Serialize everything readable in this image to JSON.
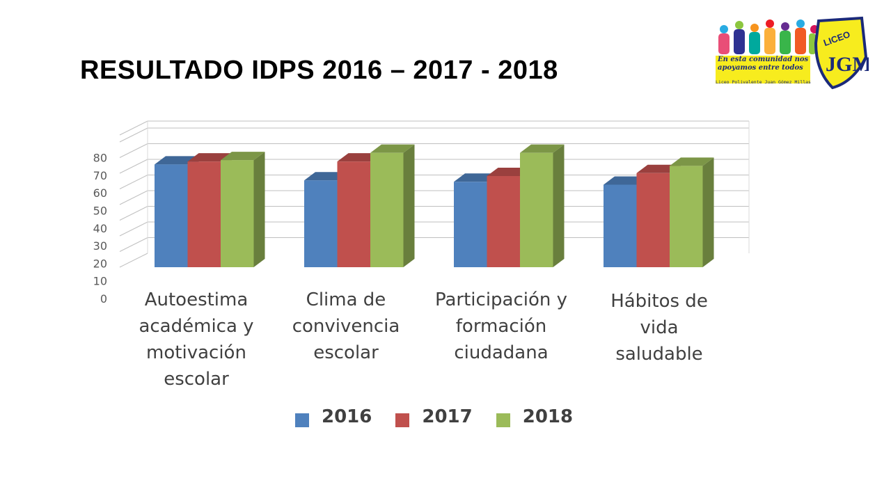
{
  "slide": {
    "title": "RESULTADO IDPS 2016 – 2017 - 2018"
  },
  "logo": {
    "badge_text": "LICEO",
    "monogram": "JGM",
    "slogan_line1": "En esta comunidad nos",
    "slogan_line2": "apoyamos entre todos",
    "school_name": "Liceo Polivalente Juan Gómez Millas"
  },
  "chart_data": {
    "type": "bar",
    "title": "",
    "xlabel": "",
    "ylabel": "",
    "ylim": [
      0,
      80
    ],
    "yticks": [
      0,
      10,
      20,
      30,
      40,
      50,
      60,
      70,
      80
    ],
    "grid": true,
    "legend_position": "bottom",
    "categories": [
      "Autoestima académica y motivación escolar",
      "Clima de convivencia escolar",
      "Participación y formación ciudadana",
      "Hábitos de vida saludable"
    ],
    "category_lines": [
      [
        "Autoestima",
        "académica y",
        "motivación",
        "escolar"
      ],
      [
        "Clima de",
        "convivencia",
        "escolar"
      ],
      [
        "Participación y",
        "formación",
        "ciudadana"
      ],
      [
        "Hábitos de vida",
        "saludable"
      ]
    ],
    "series": [
      {
        "name": "2016",
        "values": [
          71,
          60,
          59,
          57
        ],
        "color": "#4f81bd"
      },
      {
        "name": "2017",
        "values": [
          73,
          73,
          63,
          65
        ],
        "color": "#c0504d"
      },
      {
        "name": "2018",
        "values": [
          74,
          79,
          79,
          70
        ],
        "color": "#9bbb59"
      }
    ]
  }
}
